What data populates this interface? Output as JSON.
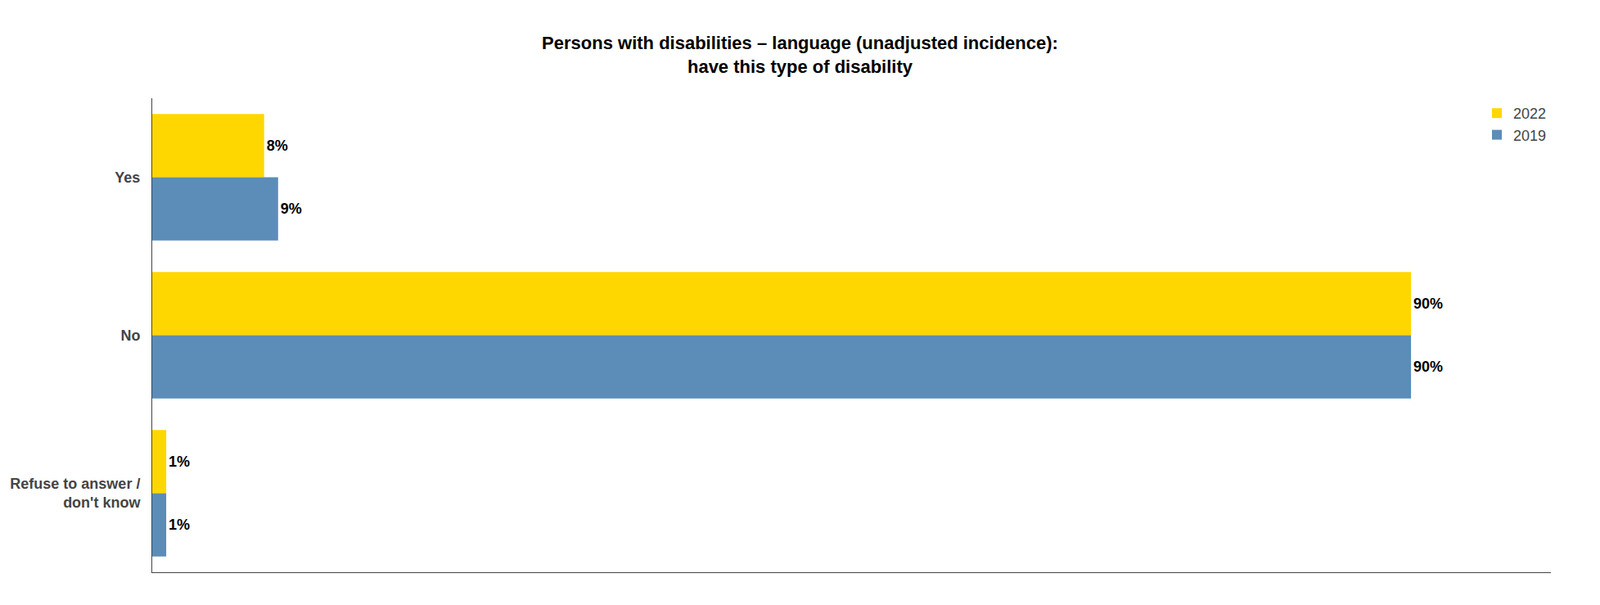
{
  "chart_data": {
    "type": "bar",
    "orientation": "horizontal",
    "title": "Persons with disabilities – language (unadjusted incidence):\nhave this type of disability",
    "categories": [
      "Yes",
      "No",
      "Refuse to answer /\ndon't know"
    ],
    "series": [
      {
        "name": "2022",
        "color": "#FFD700",
        "values": [
          8,
          90,
          1
        ],
        "value_labels": [
          "8%",
          "90%",
          "1%"
        ]
      },
      {
        "name": "2019",
        "color": "#5B8DB8",
        "values": [
          9,
          90,
          1
        ],
        "value_labels": [
          "9%",
          "90%",
          "1%"
        ]
      }
    ],
    "xlim": [
      0,
      100
    ],
    "data_labels": true,
    "tick_labels": "y",
    "grid": false,
    "legend": "upper right"
  }
}
